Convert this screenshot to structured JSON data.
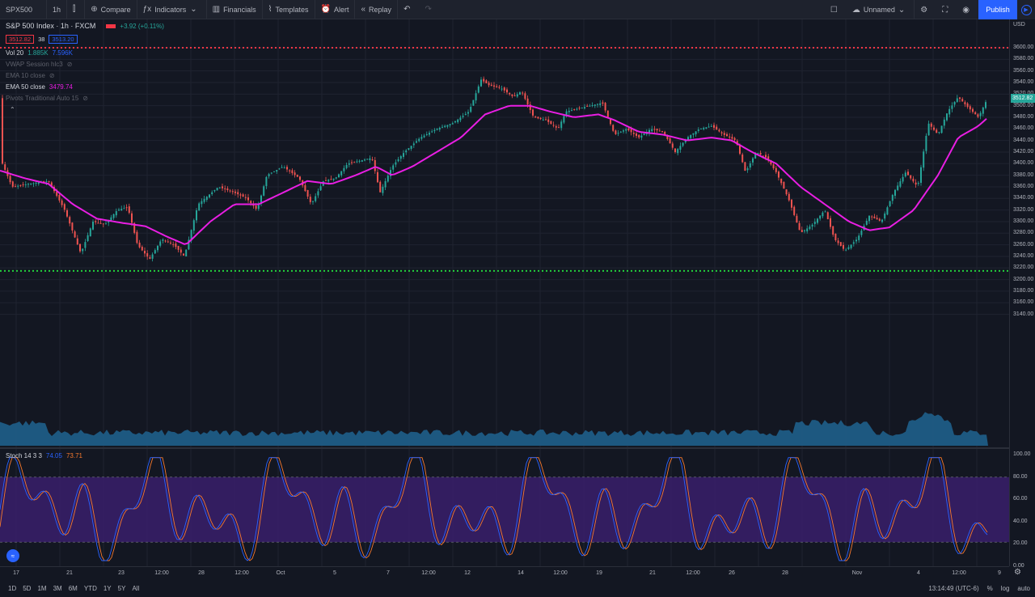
{
  "toolbar": {
    "symbol": "SPX500",
    "interval": "1h",
    "compare": "Compare",
    "indicators": "Indicators",
    "financials": "Financials",
    "templates": "Templates",
    "alert": "Alert",
    "replay": "Replay",
    "layout_name": "Unnamed",
    "publish": "Publish"
  },
  "legend": {
    "title": "S&P 500 Index · 1h · FXCM",
    "change": "+3.92 (+0.11%)",
    "bid": "3512.82",
    "spread": "38",
    "ask": "3513.20",
    "vol_label": "Vol 20",
    "vol_value1": "1.885K",
    "vol_value2": "7.596K",
    "vwap_label": "VWAP Session hlc3",
    "ema10_label": "EMA 10 close",
    "ema50_label": "EMA 50 close",
    "ema50_value": "3479.74",
    "pivots_label": "Pivots Traditional Auto 15",
    "stoch_label": "Stoch 14 3 3",
    "stoch_k": "74.05",
    "stoch_d": "73.71"
  },
  "colors": {
    "up": "#26a69a",
    "down": "#ef5350",
    "ema": "#e91ee3",
    "resistance": "#f23645",
    "support": "#22d13b",
    "volume": "#1f5f8b",
    "stoch_k": "#2962ff",
    "stoch_d": "#f5782d",
    "stoch_band": "#3a1f6b"
  },
  "price_axis": {
    "unit": "USD",
    "ticks": [
      "3600.00",
      "3580.00",
      "3560.00",
      "3540.00",
      "3520.00",
      "3500.00",
      "3480.00",
      "3460.00",
      "3440.00",
      "3420.00",
      "3400.00",
      "3380.00",
      "3360.00",
      "3340.00",
      "3320.00",
      "3300.00",
      "3280.00",
      "3260.00",
      "3240.00",
      "3220.00",
      "3200.00",
      "3180.00",
      "3160.00",
      "3140.00"
    ],
    "last_price": "3512.82"
  },
  "stoch_axis": {
    "ticks": [
      "100.00",
      "80.00",
      "60.00",
      "40.00",
      "20.00",
      "0.00"
    ]
  },
  "time_axis": {
    "ticks": [
      "17",
      "21",
      "23",
      "12:00",
      "28",
      "12:00",
      "Oct",
      "5",
      "7",
      "12:00",
      "12",
      "14",
      "12:00",
      "19",
      "21",
      "12:00",
      "26",
      "28",
      "Nov",
      "4",
      "12:00",
      "9"
    ]
  },
  "bottombar": {
    "ranges": [
      "1D",
      "5D",
      "1M",
      "3M",
      "6M",
      "YTD",
      "1Y",
      "5Y",
      "All"
    ],
    "clock": "13:14:49 (UTC-6)",
    "percent": "%",
    "log": "log",
    "auto": "auto"
  },
  "chart_data": {
    "type": "candlestick",
    "symbol": "SPX500",
    "interval": "1h",
    "ylim": [
      3140,
      3610
    ],
    "horizontal_levels": {
      "resistance": 3600,
      "support": 3215
    },
    "price_path": [
      [
        0,
        3410
      ],
      [
        15,
        3360
      ],
      [
        35,
        3365
      ],
      [
        60,
        3370
      ],
      [
        80,
        3320
      ],
      [
        100,
        3245
      ],
      [
        115,
        3300
      ],
      [
        130,
        3295
      ],
      [
        145,
        3320
      ],
      [
        158,
        3325
      ],
      [
        170,
        3260
      ],
      [
        185,
        3235
      ],
      [
        200,
        3270
      ],
      [
        215,
        3260
      ],
      [
        228,
        3240
      ],
      [
        245,
        3330
      ],
      [
        270,
        3360
      ],
      [
        290,
        3350
      ],
      [
        305,
        3340
      ],
      [
        318,
        3320
      ],
      [
        330,
        3380
      ],
      [
        350,
        3395
      ],
      [
        370,
        3375
      ],
      [
        385,
        3330
      ],
      [
        400,
        3370
      ],
      [
        415,
        3375
      ],
      [
        430,
        3400
      ],
      [
        445,
        3405
      ],
      [
        460,
        3410
      ],
      [
        470,
        3350
      ],
      [
        485,
        3395
      ],
      [
        500,
        3420
      ],
      [
        520,
        3445
      ],
      [
        540,
        3460
      ],
      [
        560,
        3470
      ],
      [
        580,
        3490
      ],
      [
        595,
        3545
      ],
      [
        605,
        3535
      ],
      [
        620,
        3530
      ],
      [
        635,
        3515
      ],
      [
        645,
        3525
      ],
      [
        660,
        3480
      ],
      [
        675,
        3475
      ],
      [
        690,
        3460
      ],
      [
        700,
        3490
      ],
      [
        715,
        3495
      ],
      [
        730,
        3500
      ],
      [
        745,
        3505
      ],
      [
        760,
        3450
      ],
      [
        775,
        3460
      ],
      [
        790,
        3445
      ],
      [
        805,
        3460
      ],
      [
        820,
        3455
      ],
      [
        835,
        3420
      ],
      [
        850,
        3445
      ],
      [
        865,
        3460
      ],
      [
        880,
        3465
      ],
      [
        895,
        3450
      ],
      [
        910,
        3440
      ],
      [
        922,
        3385
      ],
      [
        935,
        3420
      ],
      [
        948,
        3410
      ],
      [
        960,
        3385
      ],
      [
        975,
        3340
      ],
      [
        990,
        3280
      ],
      [
        1005,
        3295
      ],
      [
        1020,
        3320
      ],
      [
        1032,
        3270
      ],
      [
        1045,
        3250
      ],
      [
        1060,
        3270
      ],
      [
        1075,
        3310
      ],
      [
        1090,
        3300
      ],
      [
        1105,
        3350
      ],
      [
        1120,
        3385
      ],
      [
        1135,
        3360
      ],
      [
        1148,
        3470
      ],
      [
        1160,
        3450
      ],
      [
        1172,
        3490
      ],
      [
        1185,
        3515
      ],
      [
        1195,
        3500
      ],
      [
        1210,
        3480
      ],
      [
        1222,
        3515
      ]
    ],
    "ema50_path": [
      [
        0,
        3388
      ],
      [
        30,
        3375
      ],
      [
        60,
        3365
      ],
      [
        90,
        3330
      ],
      [
        120,
        3305
      ],
      [
        150,
        3298
      ],
      [
        180,
        3292
      ],
      [
        205,
        3275
      ],
      [
        230,
        3260
      ],
      [
        260,
        3300
      ],
      [
        290,
        3330
      ],
      [
        320,
        3330
      ],
      [
        350,
        3350
      ],
      [
        380,
        3370
      ],
      [
        410,
        3365
      ],
      [
        440,
        3380
      ],
      [
        465,
        3395
      ],
      [
        485,
        3380
      ],
      [
        510,
        3395
      ],
      [
        540,
        3420
      ],
      [
        570,
        3445
      ],
      [
        600,
        3485
      ],
      [
        630,
        3500
      ],
      [
        655,
        3500
      ],
      [
        680,
        3490
      ],
      [
        710,
        3480
      ],
      [
        740,
        3485
      ],
      [
        760,
        3475
      ],
      [
        790,
        3455
      ],
      [
        820,
        3450
      ],
      [
        850,
        3440
      ],
      [
        880,
        3445
      ],
      [
        905,
        3440
      ],
      [
        930,
        3420
      ],
      [
        960,
        3400
      ],
      [
        990,
        3360
      ],
      [
        1020,
        3330
      ],
      [
        1050,
        3300
      ],
      [
        1075,
        3285
      ],
      [
        1100,
        3290
      ],
      [
        1130,
        3320
      ],
      [
        1160,
        3380
      ],
      [
        1185,
        3445
      ],
      [
        1210,
        3465
      ],
      [
        1222,
        3480
      ]
    ],
    "stochastic": {
      "k": 74.05,
      "d": 73.71,
      "upper": 80,
      "lower": 20
    }
  }
}
